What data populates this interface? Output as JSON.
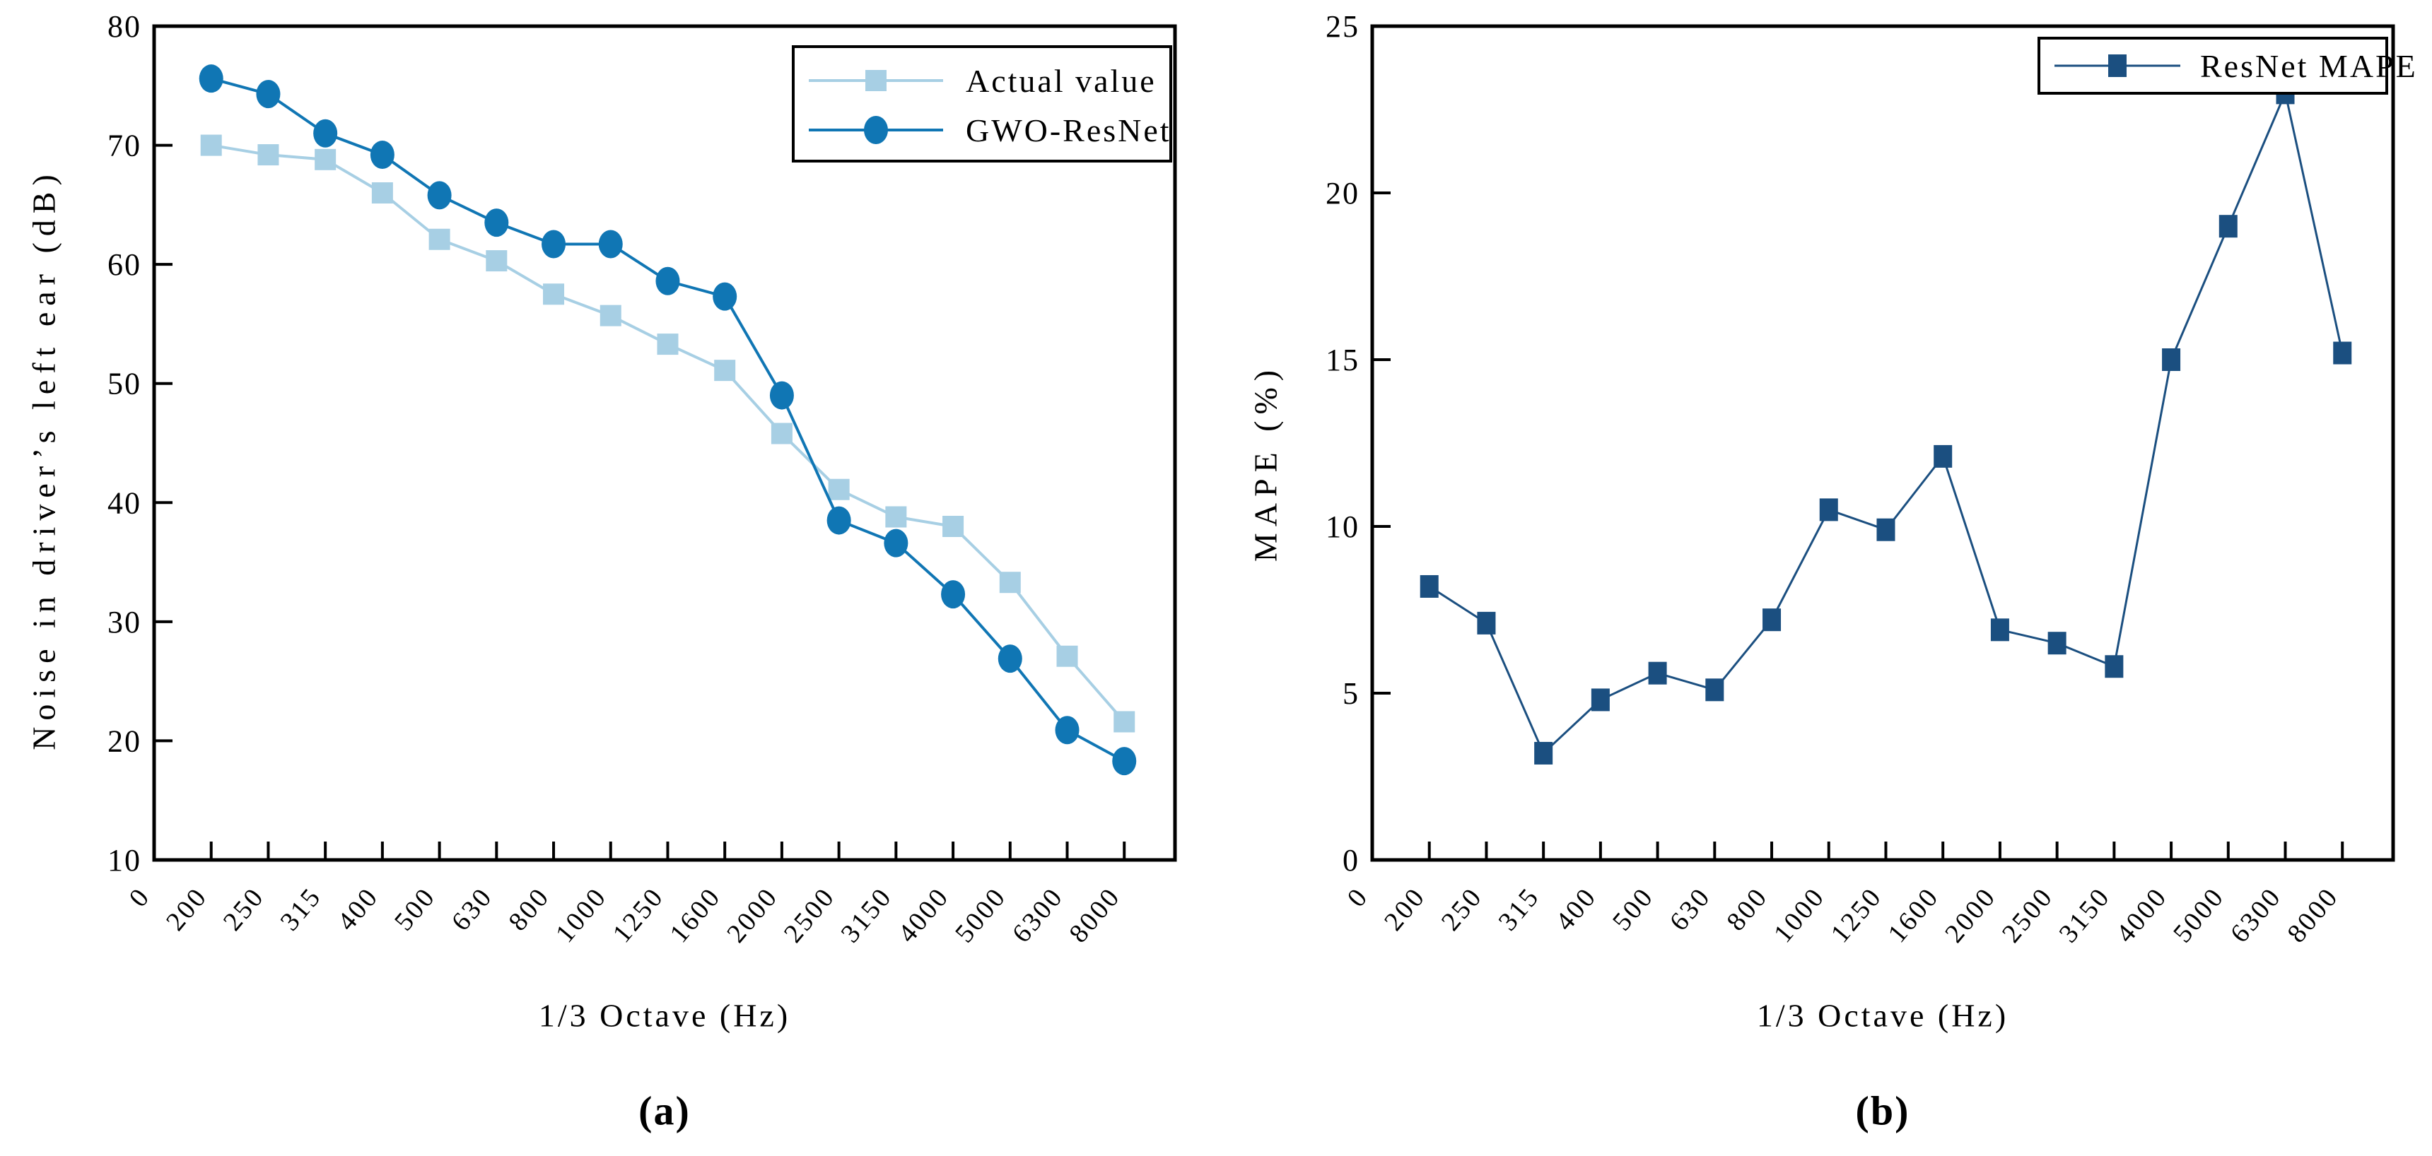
{
  "chart_data": [
    {
      "id": "a",
      "type": "line",
      "caption": "(a)",
      "xlabel": "1/3 Octave (Hz)",
      "ylabel": "Noise in driver’s left ear (dB)",
      "x_categories": [
        "0",
        "200",
        "250",
        "315",
        "400",
        "500",
        "630",
        "800",
        "1000",
        "1250",
        "1600",
        "2000",
        "2500",
        "3150",
        "4000",
        "5000",
        "6300",
        "8000"
      ],
      "ylim": [
        10,
        80
      ],
      "y_ticks": [
        "10",
        "20",
        "30",
        "40",
        "50",
        "60",
        "70",
        "80"
      ],
      "grid": false,
      "legend_position": "top-right",
      "series": [
        {
          "name": "Actual value",
          "marker": "square",
          "color": "#a7cfe4",
          "values": [
            70.0,
            69.2,
            68.8,
            66.0,
            62.1,
            60.3,
            57.5,
            55.7,
            53.3,
            51.1,
            45.8,
            41.1,
            38.8,
            38.0,
            33.3,
            27.1,
            21.6
          ]
        },
        {
          "name": "GWO-ResNet",
          "marker": "circle",
          "color": "#1076b4",
          "values": [
            75.6,
            74.3,
            71.0,
            69.2,
            65.8,
            63.5,
            61.7,
            61.7,
            58.6,
            57.3,
            49.0,
            38.5,
            36.6,
            32.3,
            26.9,
            20.9,
            18.3
          ]
        }
      ]
    },
    {
      "id": "b",
      "type": "line",
      "caption": "(b)",
      "xlabel": "1/3 Octave (Hz)",
      "ylabel": "MAPE (%)",
      "x_categories": [
        "0",
        "200",
        "250",
        "315",
        "400",
        "500",
        "630",
        "800",
        "1000",
        "1250",
        "1600",
        "2000",
        "2500",
        "3150",
        "4000",
        "5000",
        "6300",
        "8000"
      ],
      "ylim": [
        0,
        25
      ],
      "y_ticks": [
        "0",
        "5",
        "10",
        "15",
        "20",
        "25"
      ],
      "grid": false,
      "legend_position": "top-right",
      "series": [
        {
          "name": "ResNet MAPE",
          "marker": "square",
          "color": "#1b4f80",
          "values": [
            8.2,
            7.1,
            3.2,
            4.8,
            5.6,
            5.1,
            7.2,
            10.5,
            9.9,
            12.1,
            6.9,
            6.5,
            5.8,
            15.0,
            19.0,
            23.0,
            15.2
          ]
        }
      ]
    }
  ]
}
